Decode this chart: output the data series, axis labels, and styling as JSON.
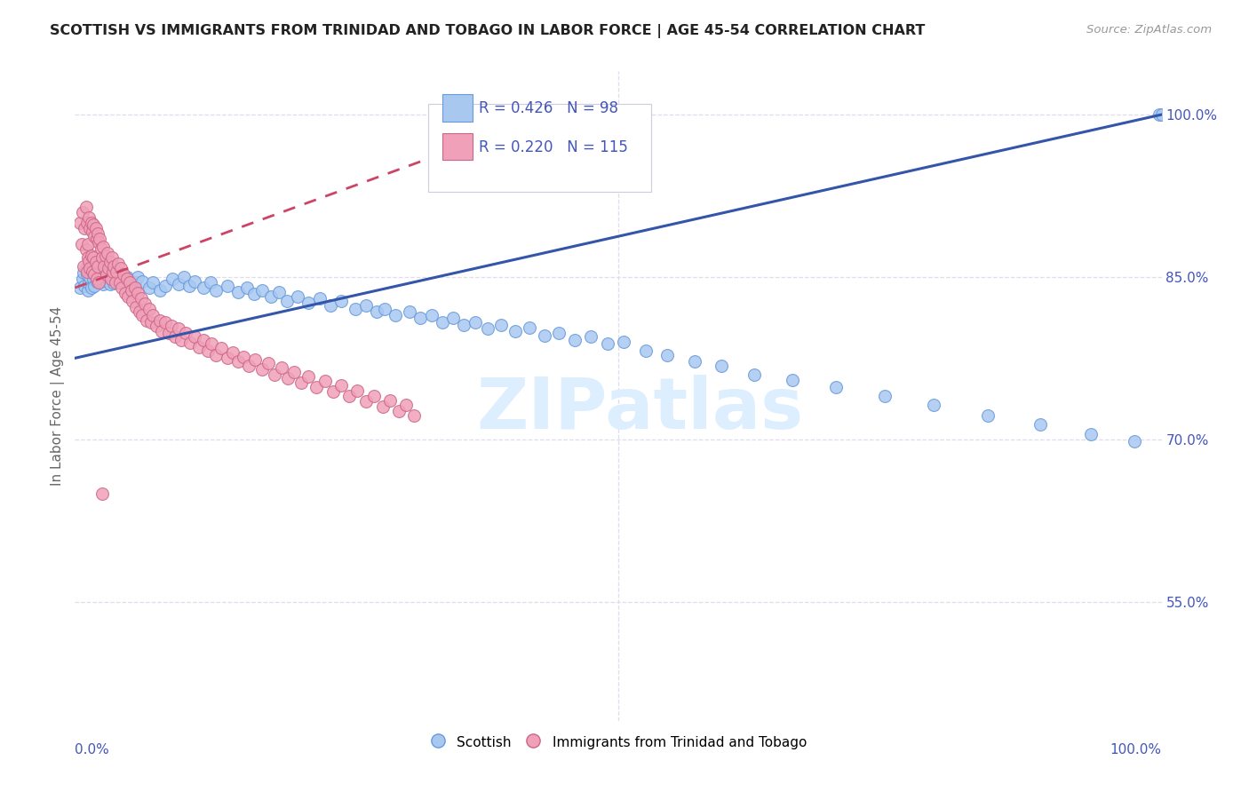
{
  "title": "SCOTTISH VS IMMIGRANTS FROM TRINIDAD AND TOBAGO IN LABOR FORCE | AGE 45-54 CORRELATION CHART",
  "source": "Source: ZipAtlas.com",
  "ylabel": "In Labor Force | Age 45-54",
  "legend_blue_r": "R = 0.426",
  "legend_blue_n": "N = 98",
  "legend_pink_r": "R = 0.220",
  "legend_pink_n": "N = 115",
  "legend_label_blue": "Scottish",
  "legend_label_pink": "Immigrants from Trinidad and Tobago",
  "blue_scatter_color": "#A8C8F0",
  "blue_edge_color": "#6699DD",
  "pink_scatter_color": "#F0A0B8",
  "pink_edge_color": "#CC6688",
  "trendline_blue_color": "#3355AA",
  "trendline_pink_color": "#CC4466",
  "axis_label_color": "#4455BB",
  "ylabel_color": "#666666",
  "grid_color": "#DDDDEE",
  "background_color": "#FFFFFF",
  "watermark_color": "#DDEEFF",
  "title_color": "#222222",
  "source_color": "#999999",
  "xlim": [
    0.0,
    1.0
  ],
  "ylim": [
    0.44,
    1.04
  ],
  "ytick_values": [
    1.0,
    0.85,
    0.7,
    0.55
  ],
  "ytick_labels": [
    "100.0%",
    "85.0%",
    "70.0%",
    "55.0%"
  ],
  "blue_x": [
    0.005,
    0.007,
    0.008,
    0.009,
    0.01,
    0.011,
    0.012,
    0.012,
    0.013,
    0.014,
    0.015,
    0.016,
    0.017,
    0.018,
    0.019,
    0.02,
    0.021,
    0.022,
    0.023,
    0.025,
    0.026,
    0.027,
    0.028,
    0.03,
    0.032,
    0.034,
    0.036,
    0.038,
    0.04,
    0.042,
    0.045,
    0.048,
    0.05,
    0.055,
    0.058,
    0.062,
    0.068,
    0.072,
    0.078,
    0.083,
    0.09,
    0.095,
    0.1,
    0.105,
    0.11,
    0.118,
    0.125,
    0.13,
    0.14,
    0.15,
    0.158,
    0.165,
    0.172,
    0.18,
    0.188,
    0.195,
    0.205,
    0.215,
    0.225,
    0.235,
    0.245,
    0.258,
    0.268,
    0.278,
    0.285,
    0.295,
    0.308,
    0.318,
    0.328,
    0.338,
    0.348,
    0.358,
    0.368,
    0.38,
    0.392,
    0.405,
    0.418,
    0.432,
    0.445,
    0.46,
    0.475,
    0.49,
    0.505,
    0.525,
    0.545,
    0.57,
    0.595,
    0.625,
    0.66,
    0.7,
    0.745,
    0.79,
    0.84,
    0.888,
    0.935,
    0.975,
    0.998,
    1.0
  ],
  "blue_y": [
    0.84,
    0.848,
    0.854,
    0.842,
    0.858,
    0.852,
    0.838,
    0.856,
    0.844,
    0.85,
    0.84,
    0.855,
    0.848,
    0.842,
    0.852,
    0.846,
    0.848,
    0.852,
    0.845,
    0.85,
    0.843,
    0.855,
    0.847,
    0.849,
    0.843,
    0.848,
    0.844,
    0.852,
    0.846,
    0.848,
    0.843,
    0.85,
    0.84,
    0.845,
    0.85,
    0.846,
    0.84,
    0.845,
    0.838,
    0.842,
    0.848,
    0.843,
    0.85,
    0.842,
    0.846,
    0.84,
    0.845,
    0.838,
    0.842,
    0.836,
    0.84,
    0.834,
    0.838,
    0.832,
    0.836,
    0.828,
    0.832,
    0.826,
    0.83,
    0.824,
    0.828,
    0.82,
    0.824,
    0.818,
    0.82,
    0.815,
    0.818,
    0.812,
    0.815,
    0.808,
    0.812,
    0.806,
    0.808,
    0.802,
    0.806,
    0.8,
    0.803,
    0.796,
    0.798,
    0.792,
    0.795,
    0.788,
    0.79,
    0.782,
    0.778,
    0.772,
    0.768,
    0.76,
    0.755,
    0.748,
    0.74,
    0.732,
    0.722,
    0.714,
    0.705,
    0.698,
    1.0,
    1.0
  ],
  "pink_x": [
    0.005,
    0.006,
    0.007,
    0.008,
    0.009,
    0.01,
    0.01,
    0.011,
    0.011,
    0.012,
    0.012,
    0.013,
    0.013,
    0.014,
    0.014,
    0.015,
    0.015,
    0.016,
    0.016,
    0.017,
    0.017,
    0.018,
    0.018,
    0.019,
    0.019,
    0.02,
    0.02,
    0.021,
    0.021,
    0.022,
    0.022,
    0.023,
    0.024,
    0.025,
    0.026,
    0.027,
    0.028,
    0.029,
    0.03,
    0.031,
    0.032,
    0.033,
    0.034,
    0.035,
    0.036,
    0.037,
    0.038,
    0.04,
    0.041,
    0.042,
    0.043,
    0.045,
    0.046,
    0.048,
    0.049,
    0.05,
    0.052,
    0.053,
    0.055,
    0.056,
    0.058,
    0.059,
    0.061,
    0.062,
    0.064,
    0.066,
    0.068,
    0.07,
    0.072,
    0.075,
    0.078,
    0.08,
    0.083,
    0.086,
    0.089,
    0.092,
    0.095,
    0.098,
    0.102,
    0.106,
    0.11,
    0.114,
    0.118,
    0.122,
    0.126,
    0.13,
    0.135,
    0.14,
    0.145,
    0.15,
    0.155,
    0.16,
    0.166,
    0.172,
    0.178,
    0.184,
    0.19,
    0.196,
    0.202,
    0.208,
    0.215,
    0.222,
    0.23,
    0.238,
    0.245,
    0.252,
    0.26,
    0.268,
    0.275,
    0.283,
    0.29,
    0.298,
    0.305,
    0.312,
    0.025
  ],
  "pink_y": [
    0.9,
    0.88,
    0.91,
    0.86,
    0.895,
    0.875,
    0.915,
    0.855,
    0.9,
    0.88,
    0.868,
    0.905,
    0.865,
    0.895,
    0.858,
    0.9,
    0.87,
    0.892,
    0.855,
    0.898,
    0.868,
    0.888,
    0.852,
    0.895,
    0.864,
    0.885,
    0.848,
    0.89,
    0.86,
    0.882,
    0.845,
    0.885,
    0.876,
    0.868,
    0.878,
    0.86,
    0.87,
    0.852,
    0.872,
    0.858,
    0.864,
    0.848,
    0.868,
    0.855,
    0.86,
    0.845,
    0.855,
    0.862,
    0.845,
    0.858,
    0.84,
    0.852,
    0.835,
    0.848,
    0.832,
    0.845,
    0.838,
    0.828,
    0.84,
    0.822,
    0.835,
    0.818,
    0.83,
    0.815,
    0.825,
    0.81,
    0.82,
    0.808,
    0.815,
    0.805,
    0.81,
    0.8,
    0.808,
    0.798,
    0.805,
    0.795,
    0.802,
    0.792,
    0.798,
    0.789,
    0.795,
    0.785,
    0.792,
    0.782,
    0.788,
    0.778,
    0.784,
    0.775,
    0.78,
    0.772,
    0.776,
    0.768,
    0.774,
    0.765,
    0.77,
    0.76,
    0.766,
    0.756,
    0.762,
    0.752,
    0.758,
    0.748,
    0.754,
    0.744,
    0.75,
    0.74,
    0.745,
    0.735,
    0.74,
    0.73,
    0.736,
    0.726,
    0.732,
    0.722,
    0.65
  ],
  "blue_trendline_x0": 0.0,
  "blue_trendline_y0": 0.775,
  "blue_trendline_x1": 1.0,
  "blue_trendline_y1": 1.0,
  "pink_trendline_x0": 0.0,
  "pink_trendline_y0": 0.84,
  "pink_trendline_x1": 0.45,
  "pink_trendline_y1": 1.005
}
